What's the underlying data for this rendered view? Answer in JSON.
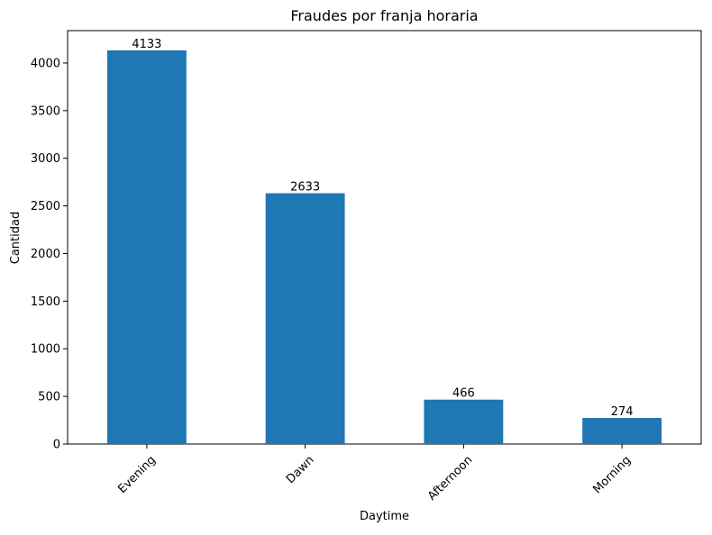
{
  "chart_data": {
    "type": "bar",
    "title": "Fraudes por franja horaria",
    "xlabel": "Daytime",
    "ylabel": "Cantidad",
    "categories": [
      "Evening",
      "Dawn",
      "Afternoon",
      "Morning"
    ],
    "values": [
      4133,
      2633,
      466,
      274
    ],
    "data_labels": [
      "4133",
      "2633",
      "466",
      "274"
    ],
    "ylim": [
      0,
      4340
    ],
    "yticks": [
      0,
      500,
      1000,
      1500,
      2000,
      2500,
      3000,
      3500,
      4000
    ],
    "grid": false,
    "bar_color": "#1f77b4",
    "xtick_rotation_deg": 45
  }
}
